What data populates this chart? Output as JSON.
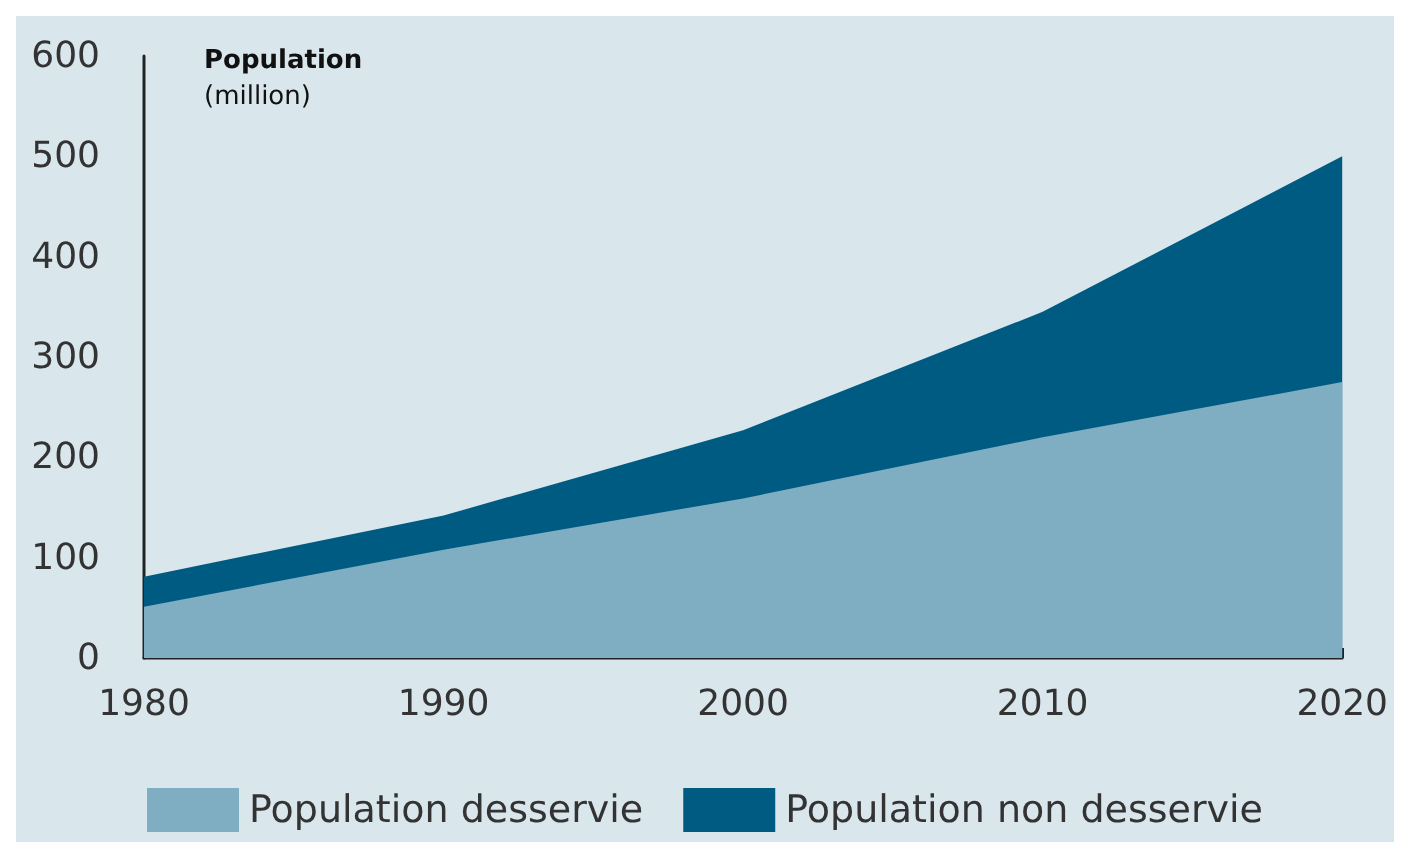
{
  "chart_data": {
    "type": "area",
    "stacked": true,
    "ylabel": "Population\n(million)",
    "x": [
      1980,
      1990,
      2000,
      2010,
      2020
    ],
    "series": [
      {
        "name": "Population desservie",
        "color": "#7fadc2",
        "values": [
          51,
          108,
          159,
          220,
          275
        ]
      },
      {
        "name": "Population non desservie",
        "color": "#005b82",
        "values": [
          30,
          34,
          68,
          125,
          225
        ]
      }
    ],
    "xlim": [
      1980,
      2020
    ],
    "xticks": [
      1980,
      1990,
      2000,
      2010,
      2020
    ],
    "ylim": [
      0,
      600
    ],
    "yticks": [
      0,
      100,
      200,
      300,
      400,
      500,
      600
    ],
    "grid": false,
    "legend": "bottom"
  }
}
